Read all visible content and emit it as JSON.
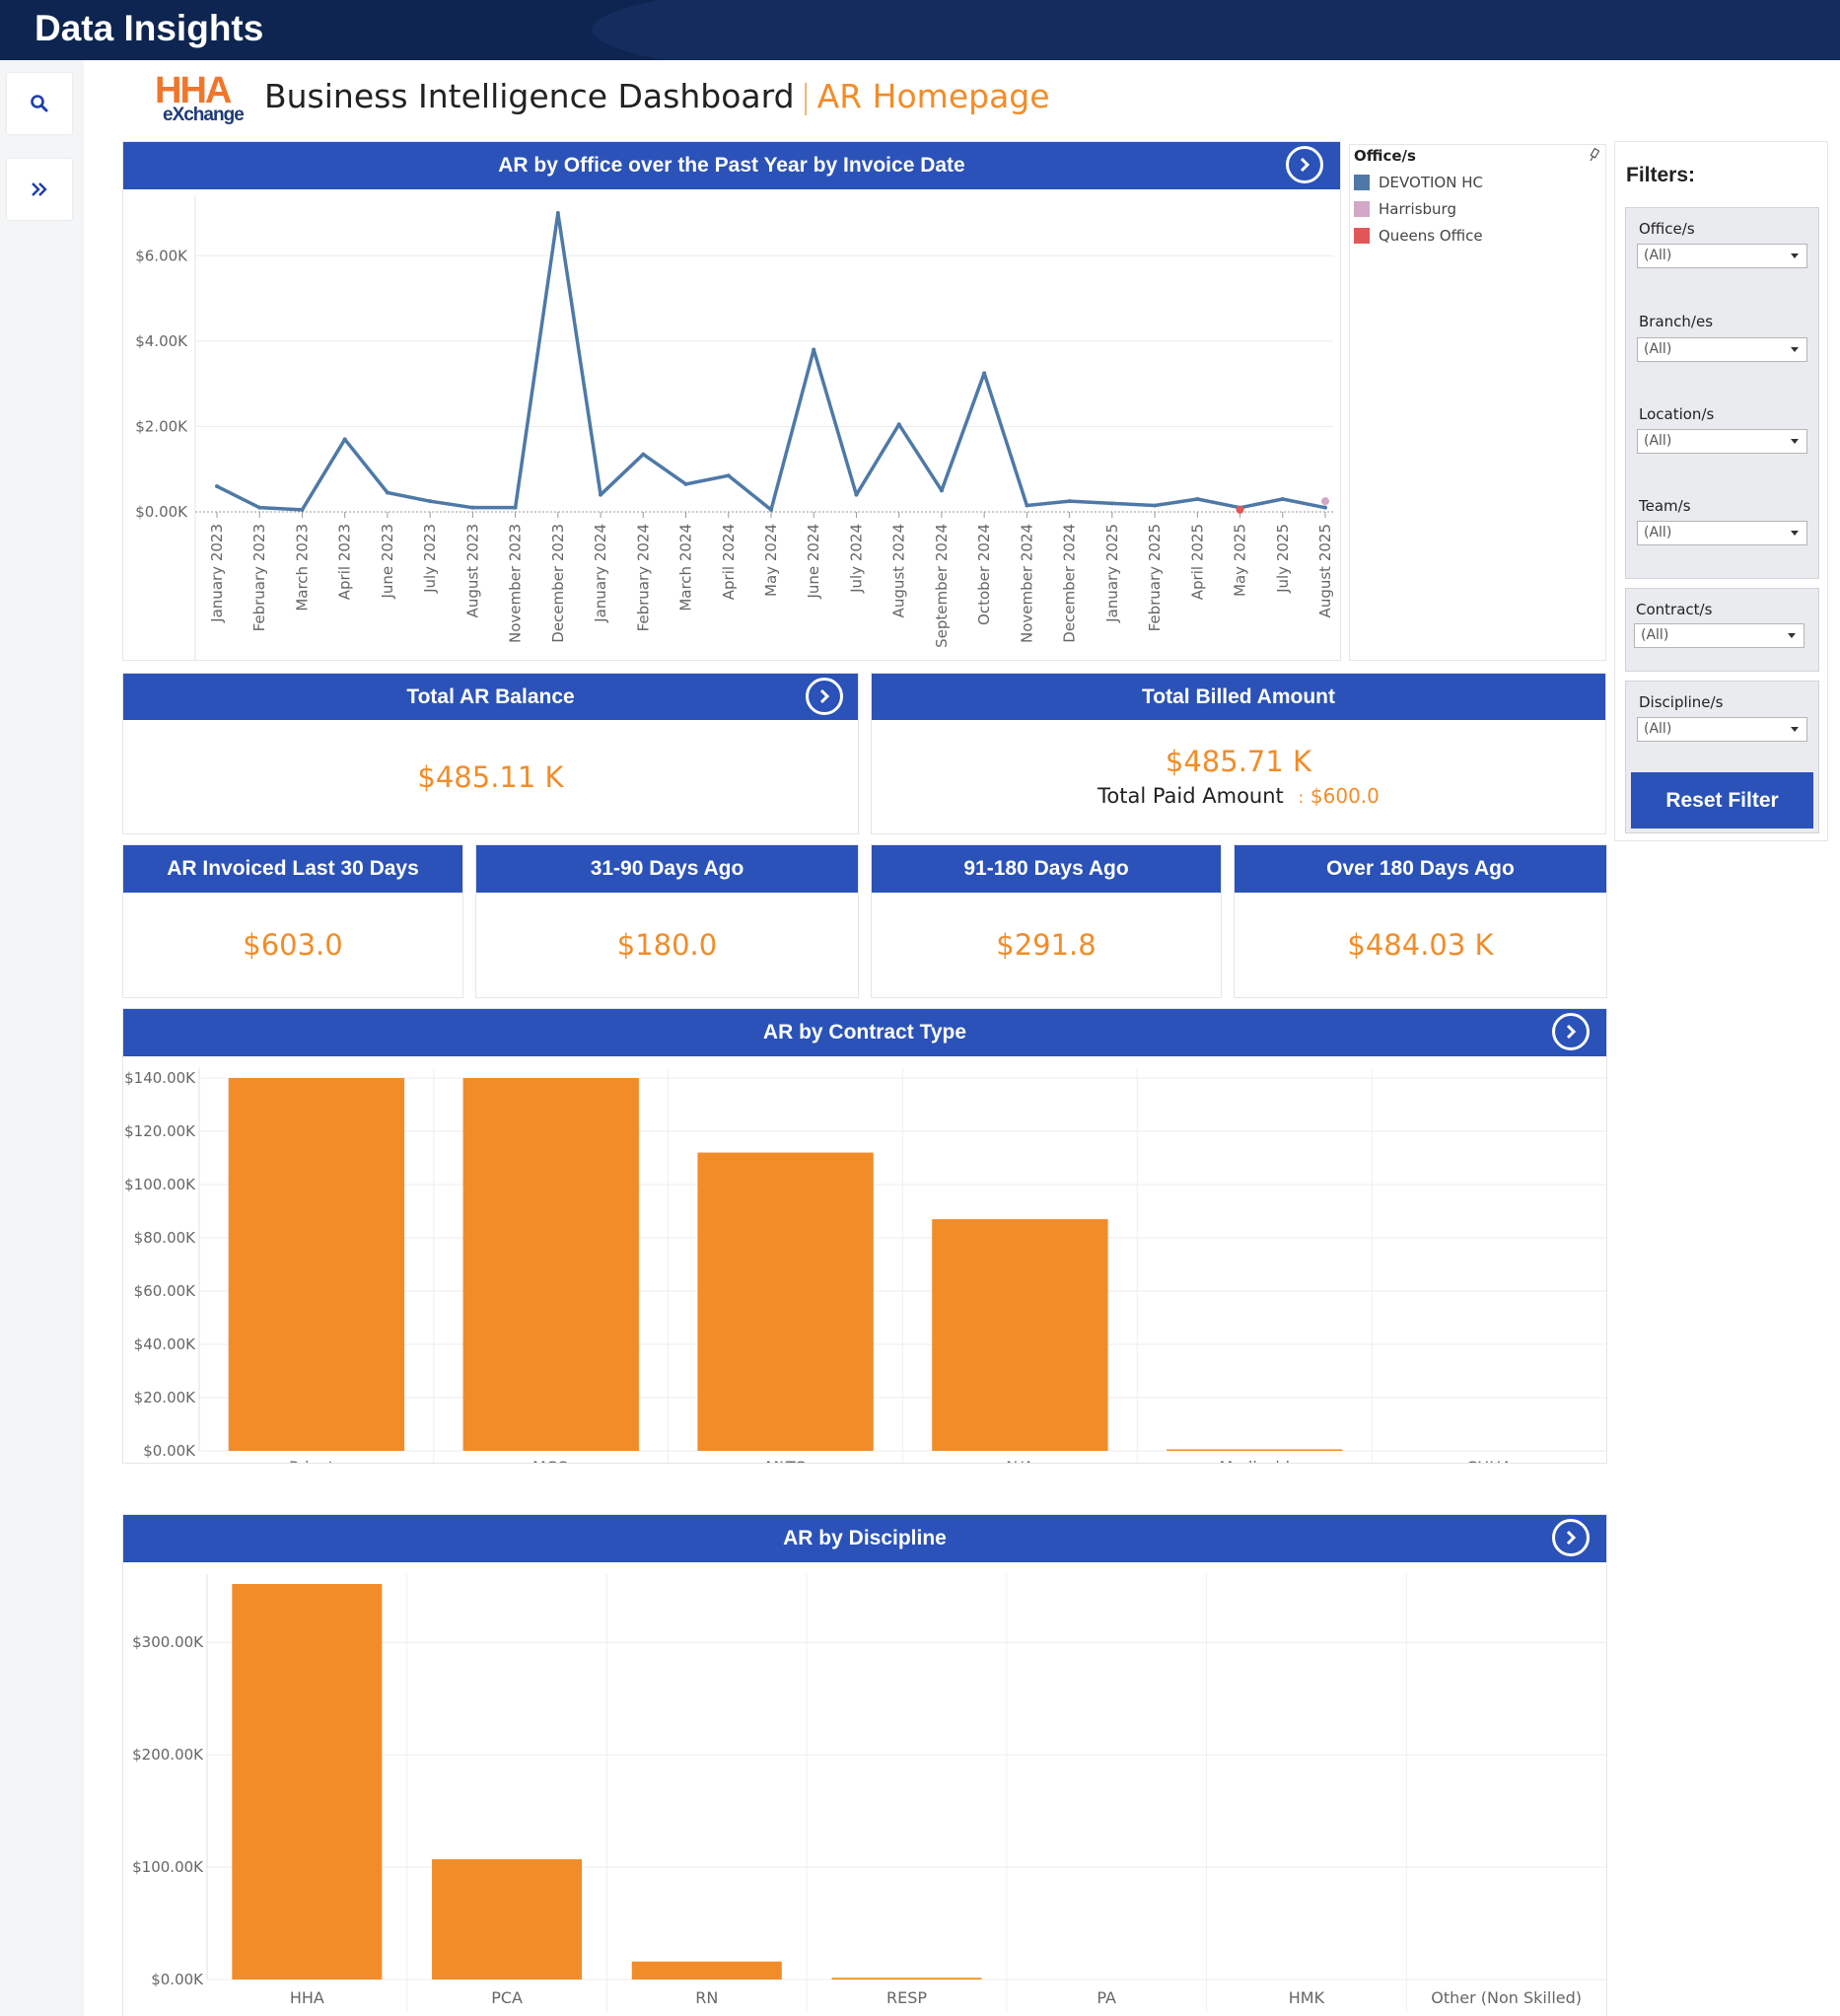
{
  "app": {
    "title": "Data Insights"
  },
  "header": {
    "logo_top": "HHA",
    "logo_bottom": "eXchange",
    "title": "Business Intelligence Dashboard",
    "separator": "|",
    "subtitle": "AR Homepage"
  },
  "line_panel": {
    "title": "AR by Office over the Past Year by Invoice Date"
  },
  "legend": {
    "title": "Office/s",
    "items": [
      {
        "label": "DEVOTION HC",
        "color": "#4e79a7"
      },
      {
        "label": "Harrisburg",
        "color": "#d4a6c8"
      },
      {
        "label": "Queens Office",
        "color": "#e15759"
      }
    ]
  },
  "kpis": {
    "total_ar": {
      "title": "Total AR Balance",
      "value": "$485.11 K"
    },
    "total_billed": {
      "title": "Total Billed Amount",
      "value": "$485.71 K",
      "paid_label": "Total Paid Amount",
      "paid_colon": ":",
      "paid_value": "$600.0"
    },
    "last30": {
      "title": "AR Invoiced Last 30 Days",
      "value": "$603.0"
    },
    "d31_90": {
      "title": "31-90 Days Ago",
      "value": "$180.0"
    },
    "d91_180": {
      "title": "91-180 Days Ago",
      "value": "$291.8"
    },
    "over180": {
      "title": "Over 180 Days Ago",
      "value": "$484.03 K"
    }
  },
  "contract_panel": {
    "title": "AR by Contract Type"
  },
  "discipline_panel": {
    "title": "AR by Discipline"
  },
  "filters": {
    "title": "Filters:",
    "groups": [
      {
        "label": "Office/s",
        "value": "(All)"
      },
      {
        "label": "Branch/es",
        "value": "(All)"
      },
      {
        "label": "Location/s",
        "value": "(All)"
      },
      {
        "label": "Team/s",
        "value": "(All)"
      },
      {
        "label": "Contract/s",
        "value": "(All)"
      },
      {
        "label": "Discipline/s",
        "value": "(All)"
      }
    ],
    "reset_label": "Reset Filter"
  },
  "chart_data": [
    {
      "type": "line",
      "title": "AR by Office over the Past Year by Invoice Date",
      "x": [
        "January 2023",
        "February 2023",
        "March 2023",
        "April 2023",
        "June 2023",
        "July 2023",
        "August 2023",
        "November 2023",
        "December 2023",
        "January 2024",
        "February 2024",
        "March 2024",
        "April 2024",
        "May 2024",
        "June 2024",
        "July 2024",
        "August 2024",
        "September 2024",
        "October 2024",
        "November 2024",
        "December 2024",
        "January 2025",
        "February 2025",
        "April 2025",
        "May 2025",
        "July 2025",
        "August 2025"
      ],
      "ylim": [
        0,
        7000
      ],
      "yticks": [
        0,
        2000,
        4000,
        6000
      ],
      "ytick_labels": [
        "$0.00K",
        "$2.00K",
        "$4.00K",
        "$6.00K"
      ],
      "series": [
        {
          "name": "DEVOTION HC",
          "color": "#4e79a7",
          "values": [
            600,
            100,
            50,
            1700,
            450,
            250,
            100,
            100,
            7000,
            400,
            1350,
            650,
            850,
            50,
            3800,
            400,
            2050,
            500,
            3250,
            150,
            250,
            200,
            150,
            300,
            100,
            300,
            100
          ]
        },
        {
          "name": "Harrisburg",
          "color": "#d4a6c8",
          "points": [
            {
              "x": "August 2025",
              "y": 250
            }
          ]
        },
        {
          "name": "Queens Office",
          "color": "#e15759",
          "points": [
            {
              "x": "May 2025",
              "y": 50
            }
          ]
        }
      ],
      "grid": true
    },
    {
      "type": "bar",
      "title": "AR by Contract Type",
      "categories": [
        "Private",
        "MCO",
        "MLTC",
        "N/A",
        "Medicaid",
        "CHHA"
      ],
      "values": [
        140000,
        140000,
        112000,
        87000,
        400,
        0
      ],
      "ylim": [
        0,
        140000
      ],
      "yticks": [
        0,
        20000,
        40000,
        60000,
        80000,
        100000,
        120000,
        140000
      ],
      "ytick_labels": [
        "$0.00K",
        "$20.00K",
        "$40.00K",
        "$60.00K",
        "$80.00K",
        "$100.00K",
        "$120.00K",
        "$140.00K"
      ],
      "color": "#f28c28",
      "grid": true
    },
    {
      "type": "bar",
      "title": "AR by Discipline",
      "categories": [
        "HHA",
        "PCA",
        "RN",
        "RESP",
        "PA",
        "HMK",
        "Other (Non Skilled)"
      ],
      "values": [
        352000,
        107000,
        16000,
        1500,
        0,
        0,
        0
      ],
      "ylim": [
        0,
        352000
      ],
      "yticks": [
        0,
        100000,
        200000,
        300000
      ],
      "ytick_labels": [
        "$0.00K",
        "$100.00K",
        "$200.00K",
        "$300.00K"
      ],
      "color": "#f28c28",
      "grid": true
    }
  ]
}
